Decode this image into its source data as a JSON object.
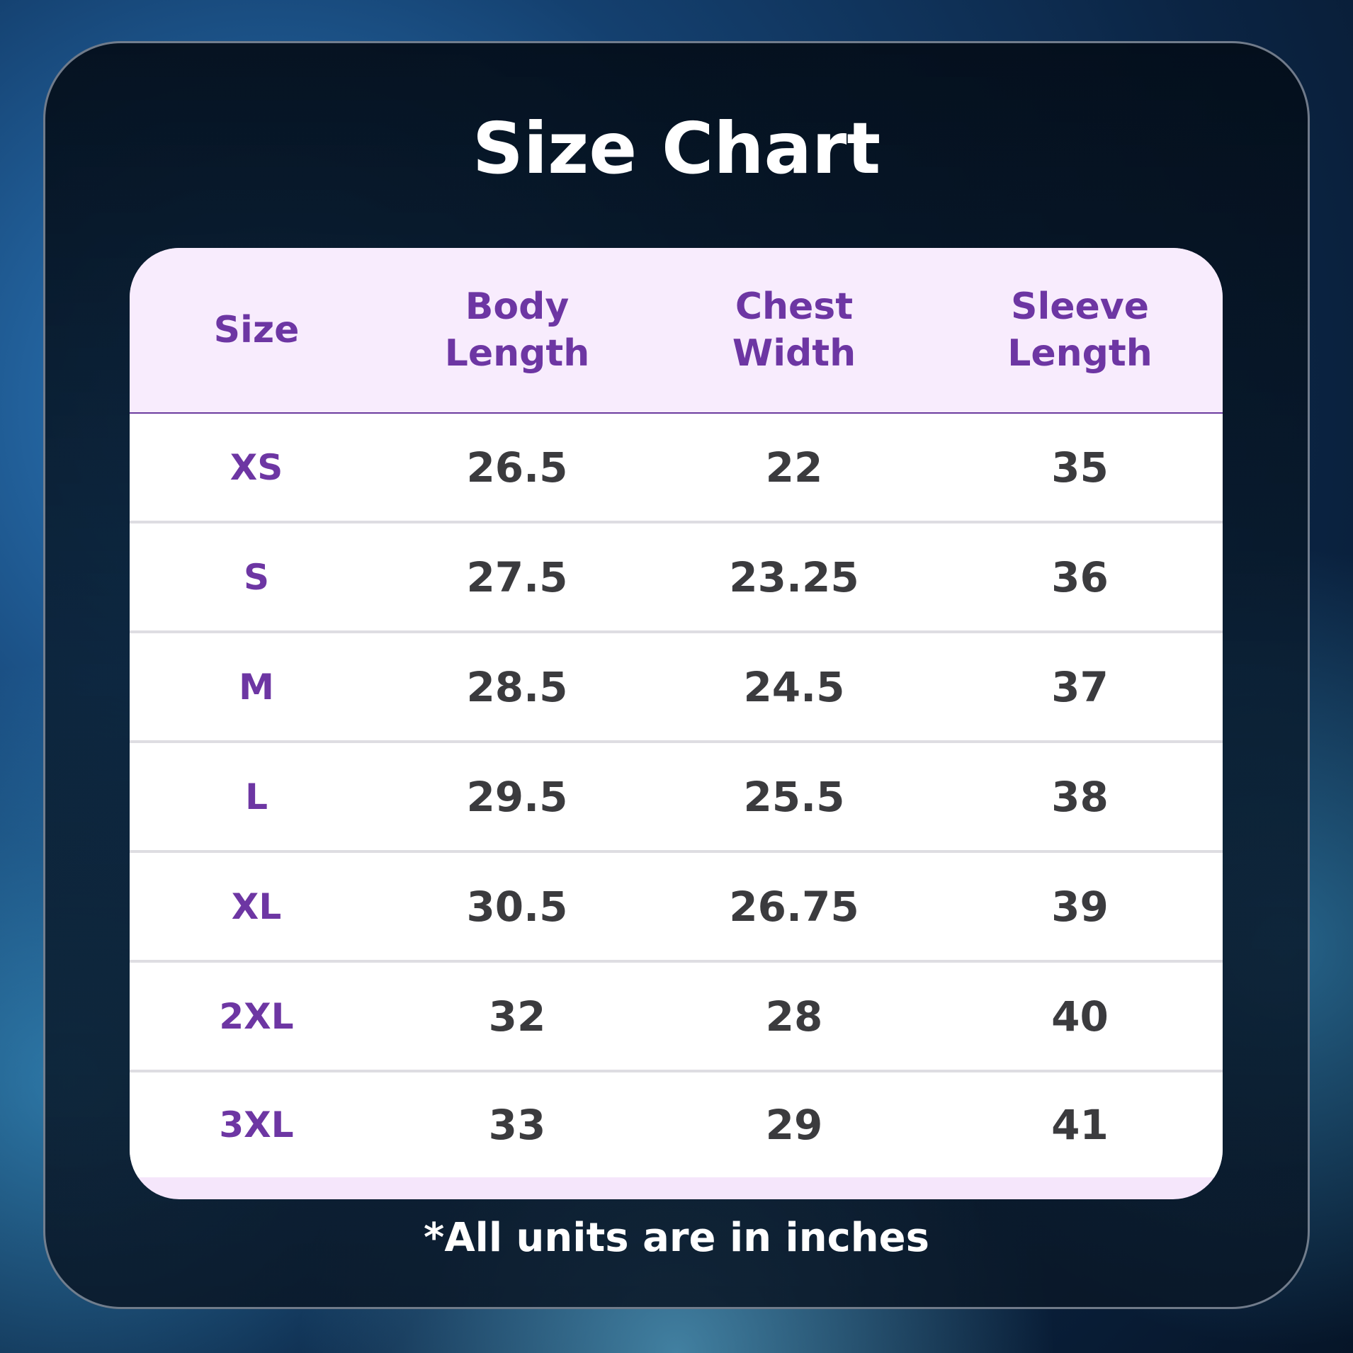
{
  "header": {
    "title": "Size Chart"
  },
  "table": {
    "columns": [
      "Size",
      "Body Length",
      "Chest Width",
      "Sleeve Length"
    ],
    "rows": [
      [
        "XS",
        "26.5",
        "22",
        "35"
      ],
      [
        "S",
        "27.5",
        "23.25",
        "36"
      ],
      [
        "M",
        "28.5",
        "24.5",
        "37"
      ],
      [
        "L",
        "29.5",
        "25.5",
        "38"
      ],
      [
        "XL",
        "30.5",
        "26.75",
        "39"
      ],
      [
        "2XL",
        "32",
        "28",
        "40"
      ],
      [
        "3XL",
        "33",
        "29",
        "41"
      ]
    ]
  },
  "footnote": "*All units are in inches"
}
